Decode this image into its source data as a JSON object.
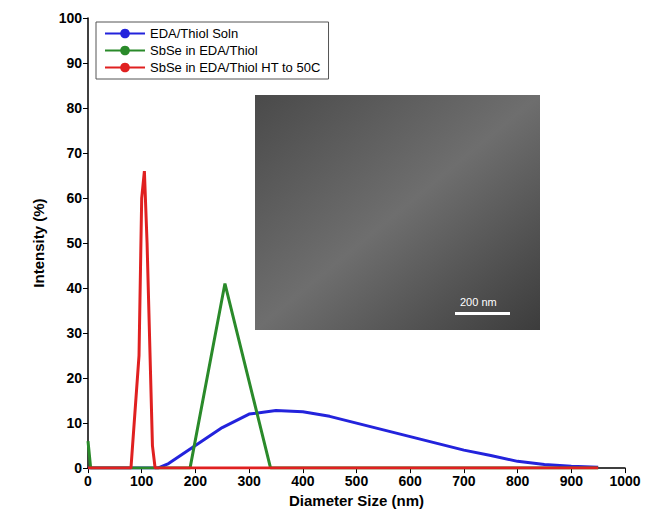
{
  "chart_data": {
    "type": "line",
    "x_label": "Diameter Size (nm)",
    "y_label": "Intensity (%)",
    "xlim": [
      0,
      1000
    ],
    "xticks": [
      0,
      100,
      200,
      300,
      400,
      500,
      600,
      700,
      800,
      900,
      1000
    ],
    "ylim": [
      0,
      100
    ],
    "yticks": [
      0,
      10,
      20,
      30,
      40,
      50,
      60,
      70,
      80,
      90,
      100
    ],
    "grid": false,
    "legend": "upper left",
    "annotations": [
      {
        "text": "200 nm"
      }
    ],
    "series": [
      {
        "name": "EDA/Thiol Soln",
        "color": "#2323dc",
        "x": [
          0,
          130,
          150,
          200,
          250,
          300,
          350,
          400,
          450,
          500,
          550,
          600,
          650,
          700,
          750,
          800,
          850,
          900,
          950
        ],
        "values": [
          0,
          0,
          1,
          5,
          9,
          12,
          12.8,
          12.5,
          11.5,
          10,
          8.5,
          7,
          5.5,
          4,
          2.8,
          1.5,
          0.8,
          0.4,
          0.2
        ]
      },
      {
        "name": "SbSe in EDA/Thiol",
        "color": "#2a8a2a",
        "x": [
          0,
          5,
          190,
          255,
          340,
          950
        ],
        "values": [
          6,
          0,
          0,
          41,
          0,
          0
        ]
      },
      {
        "name": "SbSe in EDA/Thiol HT to 50C",
        "color": "#e02020",
        "x": [
          0,
          80,
          95,
          100,
          105,
          110,
          120,
          125,
          950
        ],
        "values": [
          0,
          0,
          25,
          60,
          66,
          50,
          5,
          0,
          0
        ]
      }
    ]
  }
}
